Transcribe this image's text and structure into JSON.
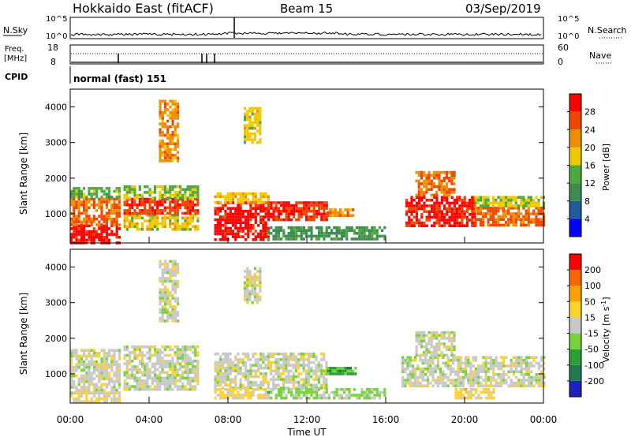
{
  "header": {
    "title": "Hokkaido East (fitACF)",
    "beam": "Beam 15",
    "date": "03/Sep/2019"
  },
  "noise_panel": {
    "left_label": "N.Sky",
    "right_label": "N.Search",
    "tick_top": "10^5",
    "tick_bottom": "10^0"
  },
  "freq_panel": {
    "label_line1": "Freq.",
    "label_line2": "[MHz]",
    "tick_top_left": "18",
    "tick_bottom_left": "8",
    "tick_top_right": "60",
    "tick_bottom_right": "0",
    "right_label": "Nave"
  },
  "cpid": {
    "label": "CPID",
    "program": "normal (fast) 151"
  },
  "colors": {
    "power_scale": [
      "#0000ff",
      "#1e5aa0",
      "#3c8c50",
      "#4caa3c",
      "#f0c800",
      "#f08c00",
      "#f04600",
      "#ff0000"
    ],
    "velocity_scale": [
      "#2020c0",
      "#207850",
      "#28a032",
      "#78d23c",
      "#c8c8c8",
      "#ffd228",
      "#ffa000",
      "#ff6400",
      "#ff0000"
    ]
  },
  "chart_data": [
    {
      "type": "heatmap",
      "panel": "power",
      "xlabel": "",
      "ylabel": "Slant Range [km]",
      "xlim": [
        "00:00",
        "24:00"
      ],
      "ylim": [
        180,
        4500
      ],
      "yticks": [
        1000,
        2000,
        3000,
        4000
      ],
      "colorbar": {
        "label": "Power [dB]",
        "ticks": [
          "4",
          "8",
          "12",
          "16",
          "20",
          "24",
          "28"
        ],
        "range": [
          0,
          32
        ]
      },
      "regions": [
        {
          "x": [
            0.0,
            2.5
          ],
          "y": [
            200,
            700
          ],
          "level": 30
        },
        {
          "x": [
            0.0,
            2.5
          ],
          "y": [
            700,
            1450
          ],
          "level": 24
        },
        {
          "x": [
            0.0,
            2.5
          ],
          "y": [
            1450,
            1750
          ],
          "level": 14
        },
        {
          "x": [
            2.7,
            6.5
          ],
          "y": [
            600,
            1000
          ],
          "level": 18
        },
        {
          "x": [
            2.7,
            6.5
          ],
          "y": [
            1000,
            1450
          ],
          "level": 27
        },
        {
          "x": [
            2.7,
            6.5
          ],
          "y": [
            1450,
            1800
          ],
          "level": 15
        },
        {
          "x": [
            7.3,
            10.0
          ],
          "y": [
            300,
            1350
          ],
          "level": 30
        },
        {
          "x": [
            7.3,
            10.0
          ],
          "y": [
            1350,
            1600
          ],
          "level": 19
        },
        {
          "x": [
            10.0,
            13.0
          ],
          "y": [
            800,
            1350
          ],
          "level": 28
        },
        {
          "x": [
            13.0,
            14.3
          ],
          "y": [
            950,
            1150
          ],
          "level": 22
        },
        {
          "x": [
            10.0,
            16.0
          ],
          "y": [
            300,
            650
          ],
          "level": 11
        },
        {
          "x": [
            17.0,
            20.5
          ],
          "y": [
            700,
            1500
          ],
          "level": 29
        },
        {
          "x": [
            17.5,
            19.5
          ],
          "y": [
            1500,
            2200
          ],
          "level": 24
        },
        {
          "x": [
            20.5,
            24.0
          ],
          "y": [
            650,
            1200
          ],
          "level": 25
        },
        {
          "x": [
            20.5,
            24.0
          ],
          "y": [
            1200,
            1500
          ],
          "level": 17
        },
        {
          "x": [
            4.5,
            5.5
          ],
          "y": [
            2500,
            4200
          ],
          "level": 22
        },
        {
          "x": [
            8.8,
            9.6
          ],
          "y": [
            3000,
            4000
          ],
          "level": 18
        }
      ]
    },
    {
      "type": "heatmap",
      "panel": "velocity",
      "xlabel": "Time UT",
      "ylabel": "Slant Range [km]",
      "xlim": [
        "00:00",
        "24:00"
      ],
      "xticks": [
        "00:00",
        "04:00",
        "08:00",
        "12:00",
        "16:00",
        "20:00",
        "00:00"
      ],
      "ylim": [
        180,
        4500
      ],
      "yticks": [
        1000,
        2000,
        3000,
        4000
      ],
      "colorbar": {
        "label": "Velocity [m s^-1]",
        "ticks": [
          "200",
          "100",
          "50",
          "15",
          "-15",
          "-50",
          "-100",
          "-200"
        ],
        "range": [
          -250,
          250
        ]
      },
      "regions": [
        {
          "x": [
            0.0,
            2.5
          ],
          "y": [
            500,
            1700
          ],
          "level": 0
        },
        {
          "x": [
            0.0,
            2.5
          ],
          "y": [
            200,
            500
          ],
          "level": 30
        },
        {
          "x": [
            2.7,
            6.5
          ],
          "y": [
            600,
            1800
          ],
          "level": 0
        },
        {
          "x": [
            7.3,
            13.0
          ],
          "y": [
            600,
            1600
          ],
          "level": 0
        },
        {
          "x": [
            7.3,
            10.0
          ],
          "y": [
            300,
            600
          ],
          "level": 30
        },
        {
          "x": [
            13.0,
            14.5
          ],
          "y": [
            1000,
            1200
          ],
          "level": -100
        },
        {
          "x": [
            10.0,
            16.0
          ],
          "y": [
            300,
            600
          ],
          "level": -40
        },
        {
          "x": [
            16.8,
            24.0
          ],
          "y": [
            700,
            1500
          ],
          "level": 0
        },
        {
          "x": [
            17.5,
            19.5
          ],
          "y": [
            1500,
            2200
          ],
          "level": 0
        },
        {
          "x": [
            19.5,
            21.5
          ],
          "y": [
            300,
            600
          ],
          "level": 40
        },
        {
          "x": [
            4.5,
            5.5
          ],
          "y": [
            2500,
            4200
          ],
          "level": 0
        },
        {
          "x": [
            8.8,
            9.6
          ],
          "y": [
            3000,
            4000
          ],
          "level": 0
        }
      ]
    }
  ]
}
